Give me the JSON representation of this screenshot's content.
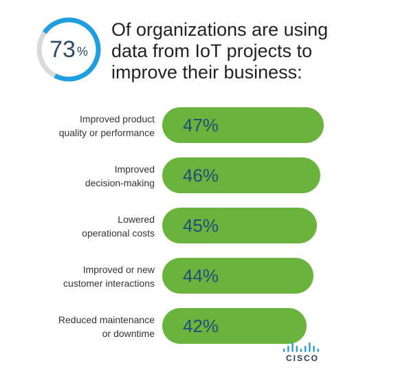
{
  "headline": {
    "value": "73",
    "unit": "%",
    "fraction": 0.73,
    "text": "Of organizations are using data from IoT projects to improve their business:"
  },
  "colors": {
    "gauge_fill": "#1ea0e0",
    "gauge_track": "#d9d9d9",
    "bar": "#6ab43e",
    "value_text": "#1f4e79",
    "label_text": "#333333"
  },
  "chart_data": {
    "type": "bar",
    "orientation": "horizontal",
    "categories": [
      [
        "Improved product",
        "quality or performance"
      ],
      [
        "Improved",
        "decision-making"
      ],
      [
        "Lowered",
        "operational costs"
      ],
      [
        "Improved or new",
        "customer interactions"
      ],
      [
        "Reduced maintenance",
        "or downtime"
      ]
    ],
    "values": [
      47,
      46,
      45,
      44,
      42
    ],
    "value_labels": [
      "47%",
      "46%",
      "45%",
      "44%",
      "42%"
    ],
    "value_suffix": "%",
    "grid": false,
    "legend": "none"
  },
  "logo": {
    "name": "cisco-logo",
    "text": "CISCO"
  }
}
